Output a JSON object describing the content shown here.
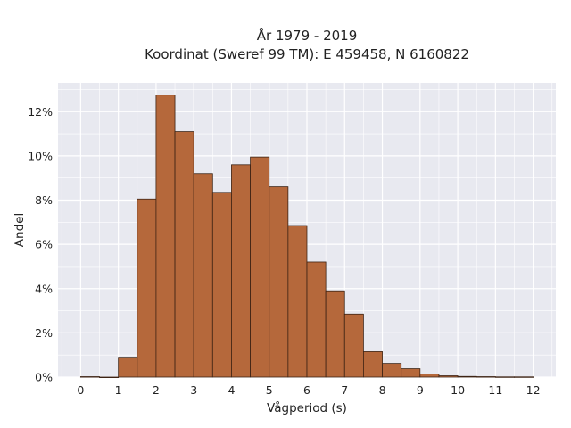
{
  "chart_data": {
    "type": "bar",
    "title_lines": [
      "År 1979 - 2019",
      "Koordinat (Sweref 99 TM): E 459458, N 6160822"
    ],
    "xlabel": "Vågperiod (s)",
    "ylabel": "Andel",
    "x_ticks": [
      "0",
      "1",
      "2",
      "3",
      "4",
      "5",
      "6",
      "7",
      "8",
      "9",
      "10",
      "11",
      "12"
    ],
    "y_ticks": [
      "0%",
      "2%",
      "4%",
      "6%",
      "8%",
      "10%",
      "12%"
    ],
    "xlim": [
      -0.6,
      12.6
    ],
    "ylim": [
      0,
      13.3
    ],
    "bin_width": 0.5,
    "bins": [
      {
        "x0": 0.0,
        "value": 0.02
      },
      {
        "x0": 0.5,
        "value": 0.0
      },
      {
        "x0": 1.0,
        "value": 0.9
      },
      {
        "x0": 1.5,
        "value": 8.05
      },
      {
        "x0": 2.0,
        "value": 12.75
      },
      {
        "x0": 2.5,
        "value": 11.1
      },
      {
        "x0": 3.0,
        "value": 9.2
      },
      {
        "x0": 3.5,
        "value": 8.35
      },
      {
        "x0": 4.0,
        "value": 9.6
      },
      {
        "x0": 4.5,
        "value": 9.95
      },
      {
        "x0": 5.0,
        "value": 8.6
      },
      {
        "x0": 5.5,
        "value": 6.85
      },
      {
        "x0": 6.0,
        "value": 5.2
      },
      {
        "x0": 6.5,
        "value": 3.9
      },
      {
        "x0": 7.0,
        "value": 2.85
      },
      {
        "x0": 7.5,
        "value": 1.15
      },
      {
        "x0": 8.0,
        "value": 0.62
      },
      {
        "x0": 8.5,
        "value": 0.38
      },
      {
        "x0": 9.0,
        "value": 0.14
      },
      {
        "x0": 9.5,
        "value": 0.06
      },
      {
        "x0": 10.0,
        "value": 0.03
      },
      {
        "x0": 10.5,
        "value": 0.02
      },
      {
        "x0": 11.0,
        "value": 0.01
      },
      {
        "x0": 11.5,
        "value": 0.01
      }
    ],
    "grid": true,
    "colors": {
      "bar_fill": "#b5683b",
      "bar_edge": "#3d2314",
      "plot_background": "#e8e9f0",
      "grid": "#ffffff"
    }
  }
}
